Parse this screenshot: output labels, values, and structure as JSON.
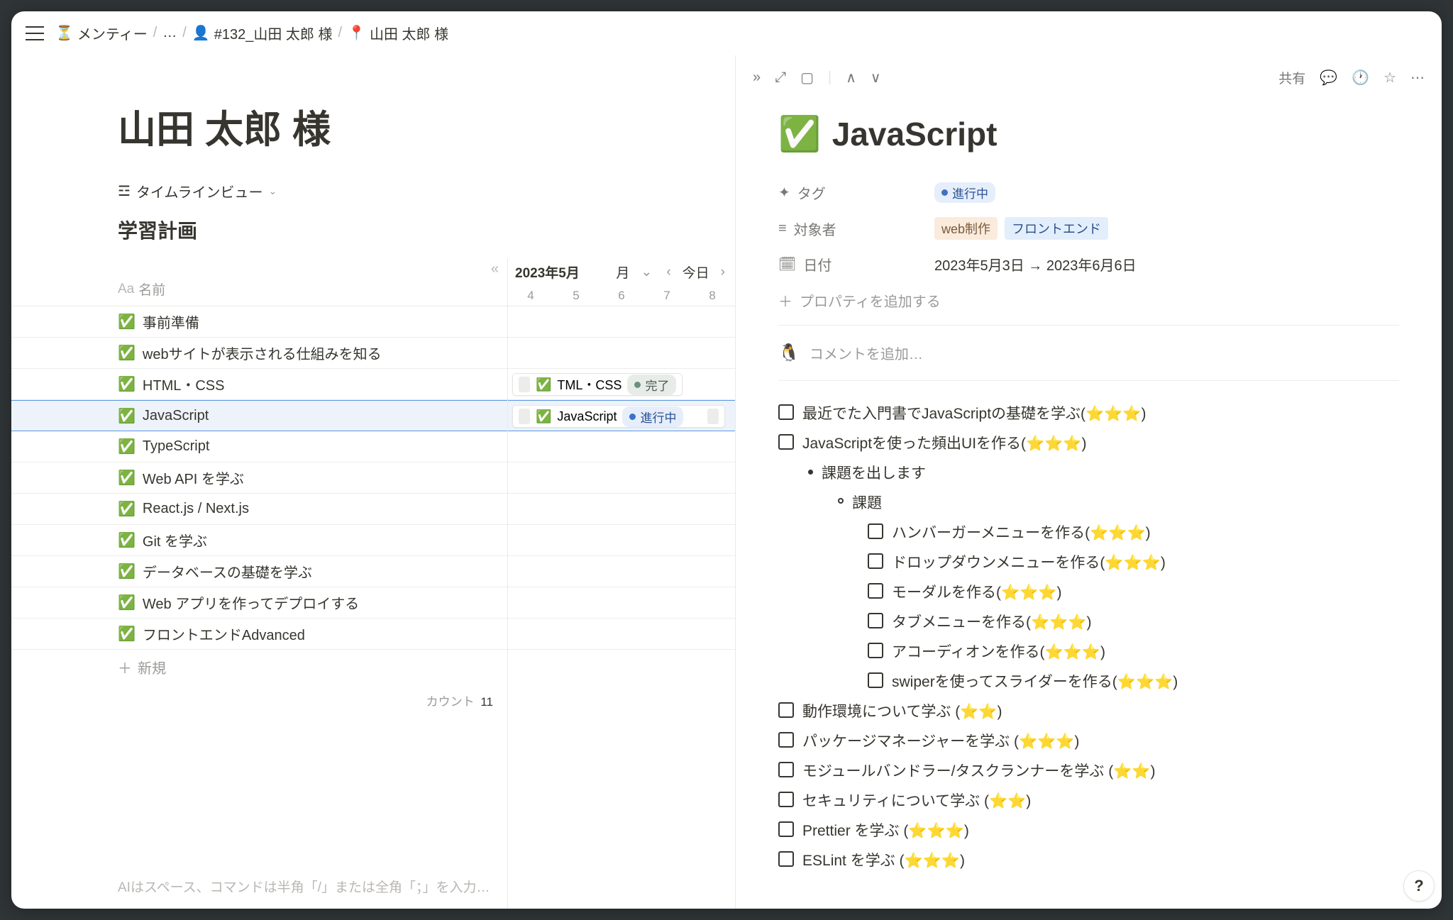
{
  "breadcrumb": {
    "item1_icon": "⏳",
    "item1_label": "メンティー",
    "ellipsis": "…",
    "item3_icon": "👤",
    "item3_label": "#132_山田 太郎 様",
    "item4_icon": "📍",
    "item4_label": "山田 太郎 様"
  },
  "left": {
    "page_title": "山田 太郎 様",
    "view_selector": "タイムラインビュー",
    "db_title": "学習計画",
    "name_header": "名前",
    "name_header_prefix": "Aa",
    "month_label": "2023年5月",
    "period_label": "月",
    "today_label": "今日",
    "days": [
      "4",
      "5",
      "6",
      "7",
      "8"
    ],
    "rows": [
      {
        "icon": "✅",
        "label": "事前準備"
      },
      {
        "icon": "✅",
        "label": "webサイトが表示される仕組みを知る"
      },
      {
        "icon": "✅",
        "label": "HTML・CSS"
      },
      {
        "icon": "✅",
        "label": "JavaScript"
      },
      {
        "icon": "✅",
        "label": "TypeScript"
      },
      {
        "icon": "✅",
        "label": "Web API を学ぶ"
      },
      {
        "icon": "✅",
        "label": "React.js / Next.js"
      },
      {
        "icon": "✅",
        "label": "Git を学ぶ"
      },
      {
        "icon": "✅",
        "label": "データベースの基礎を学ぶ"
      },
      {
        "icon": "✅",
        "label": "Web アプリを作ってデプロイする"
      },
      {
        "icon": "✅",
        "label": "フロントエンドAdvanced"
      }
    ],
    "selected_index": 3,
    "new_label": "新規",
    "count_label": "カウント",
    "count_value": "11",
    "hint": "AIはスペース、コマンドは半角「/」または全角「；」を入力…",
    "pill1": {
      "icon": "✅",
      "label": "TML・CSS",
      "tag": "完了"
    },
    "pill2": {
      "icon": "✅",
      "label": "JavaScript",
      "tag": "進行中"
    }
  },
  "right": {
    "share_label": "共有",
    "title_icon": "✅",
    "title": "JavaScript",
    "props": {
      "tag_label": "タグ",
      "tag_value": "進行中",
      "target_label": "対象者",
      "target_value1": "web制作",
      "target_value2": "フロントエンド",
      "date_label": "日付",
      "date_value": "2023年5月3日 → 2023年6月6日"
    },
    "add_prop": "プロパティを追加する",
    "comment_placeholder": "コメントを追加…",
    "avatar": "🐧",
    "checklist": [
      {
        "type": "check",
        "text": "最近でた入門書でJavaScriptの基礎を学ぶ(⭐⭐⭐)"
      },
      {
        "type": "check",
        "text": "JavaScriptを使った頻出UIを作る(⭐⭐⭐)"
      },
      {
        "type": "bullet",
        "text": "課題を出します"
      },
      {
        "type": "circle",
        "text": "課題"
      },
      {
        "type": "subcheck",
        "text": "ハンバーガーメニューを作る(⭐⭐⭐)"
      },
      {
        "type": "subcheck",
        "text": "ドロップダウンメニューを作る(⭐⭐⭐)"
      },
      {
        "type": "subcheck",
        "text": "モーダルを作る(⭐⭐⭐)"
      },
      {
        "type": "subcheck",
        "text": "タブメニューを作る(⭐⭐⭐)"
      },
      {
        "type": "subcheck",
        "text": "アコーディオンを作る(⭐⭐⭐)"
      },
      {
        "type": "subcheck",
        "text": "swiperを使ってスライダーを作る(⭐⭐⭐)"
      },
      {
        "type": "check",
        "text": "動作環境について学ぶ (⭐⭐)"
      },
      {
        "type": "check",
        "text": "パッケージマネージャーを学ぶ (⭐⭐⭐)"
      },
      {
        "type": "check",
        "text": "モジュールバンドラー/タスクランナーを学ぶ (⭐⭐)"
      },
      {
        "type": "check",
        "text": "セキュリティについて学ぶ (⭐⭐)"
      },
      {
        "type": "check",
        "text": "Prettier を学ぶ (⭐⭐⭐)"
      },
      {
        "type": "check",
        "text": "ESLint を学ぶ (⭐⭐⭐)"
      }
    ]
  }
}
